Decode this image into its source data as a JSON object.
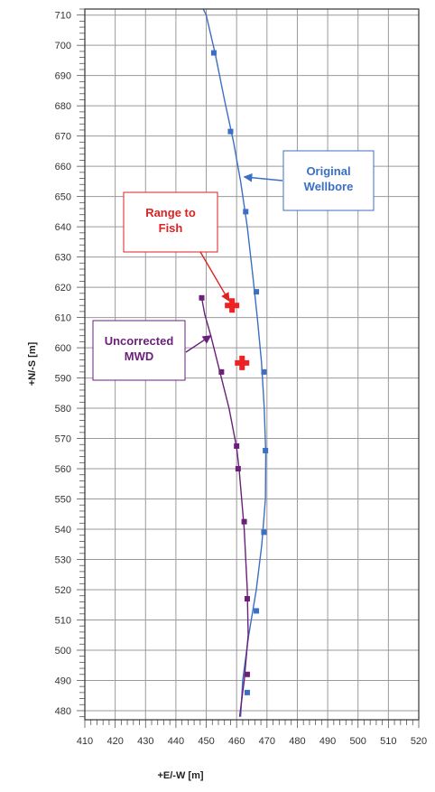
{
  "chart_data": {
    "type": "line",
    "title": "",
    "xlabel": "+E/-W [m]",
    "ylabel": "+N/-S [m]",
    "xlim": [
      410,
      520
    ],
    "ylim": [
      477,
      712
    ],
    "xticks": [
      410,
      420,
      430,
      440,
      450,
      460,
      470,
      480,
      490,
      500,
      510,
      520
    ],
    "yticks": [
      480,
      490,
      500,
      510,
      520,
      530,
      540,
      550,
      560,
      570,
      580,
      590,
      600,
      610,
      620,
      630,
      640,
      650,
      660,
      670,
      680,
      690,
      700,
      710
    ],
    "grid": true,
    "colors": {
      "original": "#3a6fc4",
      "uncorrected": "#6b1f7a",
      "fish": "#ee2222",
      "grid": "#9a9a9a",
      "frame": "#333333"
    },
    "series": [
      {
        "key": "original",
        "line": [
          [
            461.3,
            478
          ],
          [
            462.0,
            490
          ],
          [
            464.0,
            505
          ],
          [
            466.5,
            520
          ],
          [
            468.3,
            535
          ],
          [
            469.5,
            550
          ],
          [
            469.6,
            565
          ],
          [
            469.1,
            580
          ],
          [
            468.2,
            595
          ],
          [
            466.8,
            610
          ],
          [
            465.2,
            625
          ],
          [
            463.5,
            640
          ],
          [
            461.3,
            655
          ],
          [
            459.0,
            668
          ],
          [
            456.0,
            682
          ],
          [
            453.0,
            697
          ],
          [
            450.0,
            710
          ],
          [
            449.0,
            712
          ]
        ],
        "markers": [
          [
            463.5,
            486
          ],
          [
            466.5,
            513
          ],
          [
            469.0,
            539
          ],
          [
            469.5,
            566
          ],
          [
            469.0,
            592
          ],
          [
            466.5,
            618.5
          ],
          [
            463.0,
            645
          ],
          [
            458.0,
            671.5
          ],
          [
            452.5,
            697.5
          ]
        ]
      },
      {
        "key": "uncorrected",
        "line": [
          [
            461.0,
            478
          ],
          [
            462.5,
            490
          ],
          [
            463.8,
            505
          ],
          [
            463.5,
            520
          ],
          [
            462.5,
            540
          ],
          [
            460.8,
            560
          ],
          [
            460.0,
            567
          ],
          [
            457.5,
            580
          ],
          [
            454.5,
            592
          ],
          [
            451.5,
            604
          ],
          [
            449.5,
            611
          ],
          [
            448.5,
            616.5
          ]
        ],
        "markers": [
          [
            463.5,
            492
          ],
          [
            463.5,
            517
          ],
          [
            462.5,
            542.5
          ],
          [
            460.5,
            560
          ],
          [
            460.0,
            567.5
          ],
          [
            455.0,
            592
          ],
          [
            448.5,
            616.5
          ]
        ]
      }
    ],
    "fish_points": [
      [
        458.5,
        614
      ],
      [
        461.8,
        595
      ]
    ],
    "annotations": [
      {
        "key": "original",
        "lines": [
          "Original",
          "Wellbore"
        ],
        "arrow_to": [
          462.5,
          656.5
        ]
      },
      {
        "key": "fish",
        "lines": [
          "Range to",
          "Fish"
        ],
        "arrow_to": [
          457.5,
          615.5
        ]
      },
      {
        "key": "uncorrected",
        "lines": [
          "Uncorrected",
          "MWD"
        ],
        "arrow_to": [
          451.5,
          604
        ]
      }
    ]
  }
}
